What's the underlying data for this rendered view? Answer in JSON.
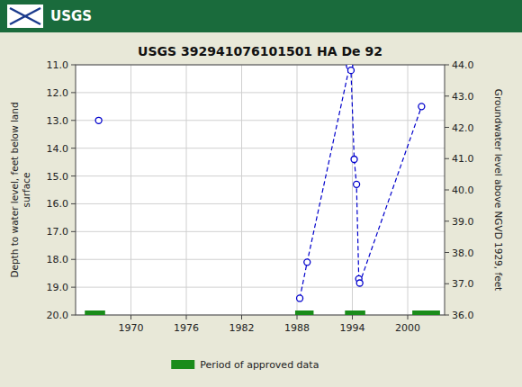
{
  "chart_data": {
    "type": "line",
    "title": "USGS 392941076101501 HA De  92",
    "annotations": [
      "USGS"
    ],
    "y_label": "Depth to water level, feet below land\nsurface",
    "y2_label": "Groundwater level above NGVD 1929, feet",
    "xlim": [
      1964,
      2004
    ],
    "xticks": [
      1970,
      1976,
      1982,
      1988,
      1994,
      2000
    ],
    "ylim": [
      20.0,
      11.0
    ],
    "yticks": [
      {
        "value": 11.0,
        "label": "11.0"
      },
      {
        "value": 12.0,
        "label": "12.0"
      },
      {
        "value": 13.0,
        "label": "13.0"
      },
      {
        "value": 14.0,
        "label": "14.0"
      },
      {
        "value": 15.0,
        "label": "15.0"
      },
      {
        "value": 16.0,
        "label": "16.0"
      },
      {
        "value": 17.0,
        "label": "17.0"
      },
      {
        "value": 18.0,
        "label": "18.0"
      },
      {
        "value": 19.0,
        "label": "19.0"
      },
      {
        "value": 20.0,
        "label": "20.0"
      }
    ],
    "y2lim": [
      36.0,
      44.0
    ],
    "y2ticks": [
      {
        "value": 44.0,
        "label": "44.0"
      },
      {
        "value": 43.0,
        "label": "43.0"
      },
      {
        "value": 42.0,
        "label": "42.0"
      },
      {
        "value": 41.0,
        "label": "41.0"
      },
      {
        "value": 40.0,
        "label": "40.0"
      },
      {
        "value": 39.0,
        "label": "39.0"
      },
      {
        "value": 38.0,
        "label": "38.0"
      },
      {
        "value": 37.0,
        "label": "37.0"
      },
      {
        "value": 36.0,
        "label": "36.0"
      }
    ],
    "grid": true,
    "legend": "bottom",
    "series": [
      {
        "type": "line",
        "color": "#0000cc",
        "marker": "circle",
        "line_style": "dashed",
        "x": [
          1988.3,
          1989.1,
          1993.7,
          1993.85,
          1994.2,
          1994.45,
          1994.7,
          1994.8,
          2001.5
        ],
        "values": [
          19.4,
          18.1,
          11.05,
          11.2,
          14.4,
          15.3,
          18.7,
          18.85,
          12.5
        ]
      },
      {
        "type": "scatter",
        "color": "#0000cc",
        "marker": "circle",
        "x": [
          1966.5
        ],
        "values": [
          13.0
        ]
      },
      {
        "name": "Period of approved data",
        "type": "range_bar",
        "color": "#1a8c1a",
        "starts": [
          1965.0,
          1987.8,
          1993.2,
          2000.5
        ],
        "ends": [
          1967.2,
          1989.8,
          1995.4,
          2003.5
        ],
        "values": [
          20.0,
          20.0,
          20.0,
          20.0
        ]
      }
    ]
  }
}
